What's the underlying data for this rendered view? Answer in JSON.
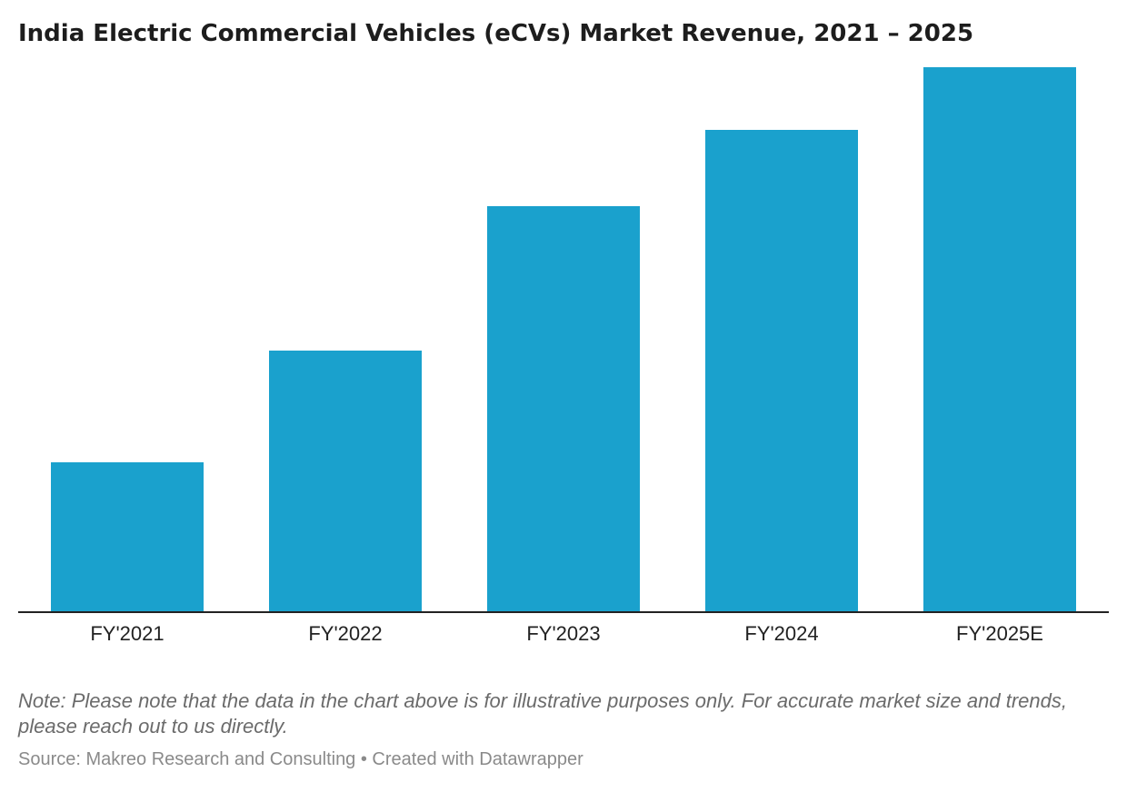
{
  "chart_data": {
    "type": "bar",
    "title": "India Electric Commercial Vehicles (eCVs) Market Revenue, 2021 – 2025",
    "categories": [
      "FY'2021",
      "FY'2022",
      "FY'2023",
      "FY'2024",
      "FY'2025E"
    ],
    "values": [
      27.5,
      48,
      74.5,
      88.5,
      100
    ],
    "ylim": [
      0,
      100
    ],
    "xlabel": "",
    "ylabel": "",
    "grid": false,
    "bar_color": "#1aa1cd"
  },
  "note": "Note: Please note that the data in the chart above is for illustrative purposes only. For accurate market size and trends, please reach out to us directly.",
  "source": "Source: Makreo Research and Consulting • Created with Datawrapper"
}
